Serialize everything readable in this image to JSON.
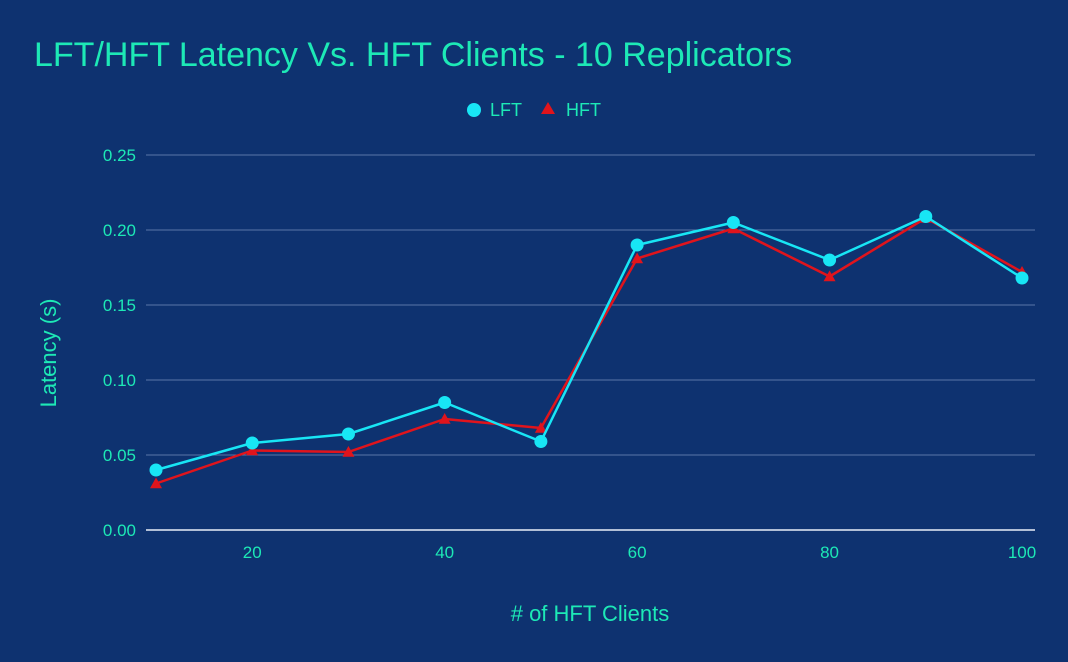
{
  "colors": {
    "background": "#0e3270",
    "text": "#1de9b6",
    "gridline": "#5b76a8",
    "baseline": "#e8eef8",
    "lft": "#18e6f5",
    "hft": "#e0141c"
  },
  "chart_data": {
    "type": "line",
    "title": "LFT/HFT Latency Vs. HFT Clients - 10 Replicators",
    "xlabel": "# of HFT Clients",
    "ylabel": "Latency (s)",
    "x": [
      10,
      20,
      30,
      40,
      50,
      60,
      70,
      80,
      90,
      100
    ],
    "xlim": [
      10,
      100
    ],
    "x_ticks": [
      20,
      40,
      60,
      80,
      100
    ],
    "x_tick_labels": [
      "20",
      "40",
      "60",
      "80",
      "100"
    ],
    "ylim": [
      0,
      0.25
    ],
    "y_ticks": [
      0,
      0.05,
      0.1,
      0.15,
      0.2,
      0.25
    ],
    "y_tick_labels": [
      "0.00",
      "0.05",
      "0.10",
      "0.15",
      "0.20",
      "0.25"
    ],
    "grid": true,
    "legend_position": "top-center",
    "series": [
      {
        "name": "LFT",
        "marker": "circle",
        "values": [
          0.04,
          0.058,
          0.064,
          0.085,
          0.059,
          0.19,
          0.205,
          0.18,
          0.209,
          0.168
        ]
      },
      {
        "name": "HFT",
        "marker": "triangle",
        "values": [
          0.031,
          0.053,
          0.052,
          0.074,
          0.068,
          0.181,
          0.201,
          0.169,
          0.208,
          0.172
        ]
      }
    ]
  }
}
